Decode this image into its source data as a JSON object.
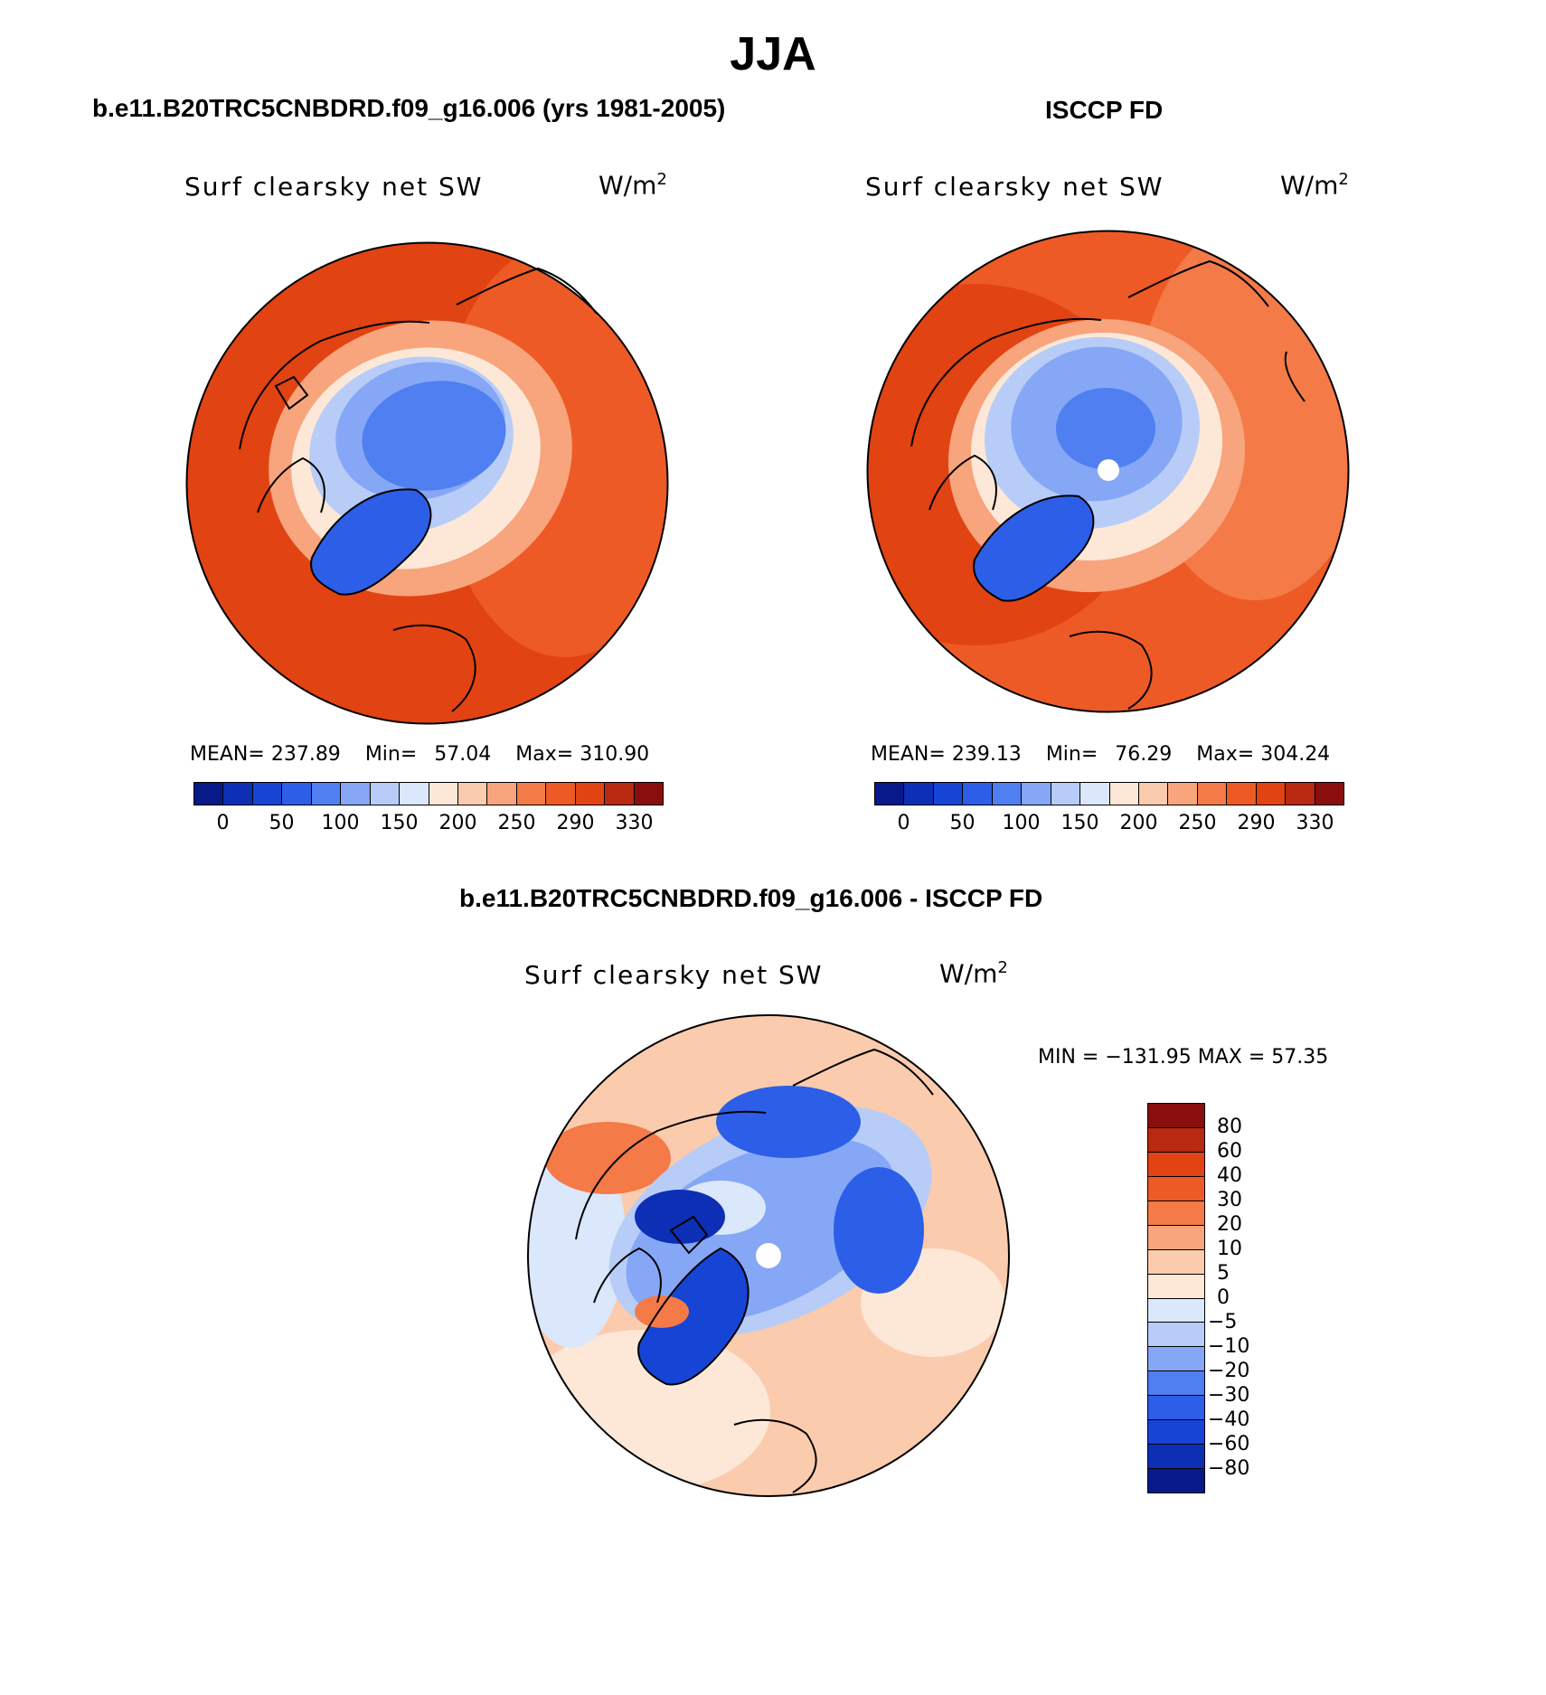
{
  "season": "JJA",
  "colors": {
    "abs_scale": [
      "#08198a",
      "#0c2fb5",
      "#1645d6",
      "#2c5ee8",
      "#4f7ff0",
      "#86a7f5",
      "#b7cdf8",
      "#dbe7fb",
      "#fde8d8",
      "#fbcbad",
      "#f8a47d",
      "#f47a48",
      "#ee5a25",
      "#e14313",
      "#b72910",
      "#8a0e0e"
    ],
    "diff_scale": [
      "#08198a",
      "#0c2fb5",
      "#1645d6",
      "#2c5ee8",
      "#4f7ff0",
      "#86a7f5",
      "#b7cdf8",
      "#dbe7fb",
      "#fde8d8",
      "#fbcbad",
      "#f8a47d",
      "#f47a48",
      "#ee5a25",
      "#e14313",
      "#b72910",
      "#8a0e0e"
    ]
  },
  "panels": {
    "model": {
      "title": "b.e11.B20TRC5CNBDRD.f09_g16.006 (yrs 1981-2005)",
      "variable": "Surf clearsky net SW",
      "unit_base": "W/m",
      "unit_exp": "2",
      "stats": {
        "mean_label": "MEAN=",
        "mean": "237.89",
        "min_label": "Min=",
        "min": "57.04",
        "max_label": "Max=",
        "max": "310.90"
      },
      "colorbar_labels": [
        "0",
        "50",
        "100",
        "150",
        "200",
        "250",
        "290",
        "330"
      ]
    },
    "obs": {
      "title": "ISCCP FD",
      "variable": "Surf clearsky net SW",
      "unit_base": "W/m",
      "unit_exp": "2",
      "stats": {
        "mean_label": "MEAN=",
        "mean": "239.13",
        "min_label": "Min=",
        "min": "76.29",
        "max_label": "Max=",
        "max": "304.24"
      },
      "colorbar_labels": [
        "0",
        "50",
        "100",
        "150",
        "200",
        "250",
        "290",
        "330"
      ]
    },
    "diff": {
      "title": "b.e11.B20TRC5CNBDRD.f09_g16.006 - ISCCP FD",
      "variable": "Surf clearsky net SW",
      "unit_base": "W/m",
      "unit_exp": "2",
      "minmax": "MIN = −131.95 MAX =   57.35",
      "colorbar_labels": [
        "80",
        "60",
        "40",
        "30",
        "20",
        "10",
        "5",
        "0",
        "−5",
        "−10",
        "−20",
        "−30",
        "−40",
        "−60",
        "−80"
      ]
    }
  }
}
